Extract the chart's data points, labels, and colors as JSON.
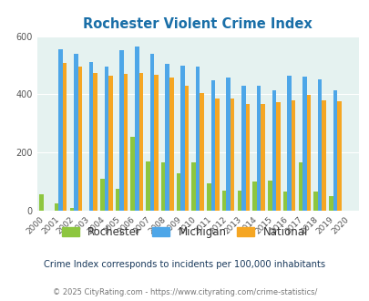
{
  "title": "Rochester Violent Crime Index",
  "years": [
    2000,
    2001,
    2002,
    2003,
    2004,
    2005,
    2006,
    2007,
    2008,
    2009,
    2010,
    2011,
    2012,
    2013,
    2014,
    2015,
    2016,
    2017,
    2018,
    2019,
    2020
  ],
  "rochester": [
    55,
    25,
    10,
    0,
    110,
    75,
    255,
    170,
    165,
    130,
    165,
    95,
    70,
    70,
    100,
    105,
    65,
    165,
    65,
    50,
    0
  ],
  "michigan": [
    0,
    555,
    540,
    510,
    495,
    552,
    565,
    538,
    505,
    500,
    495,
    448,
    458,
    430,
    430,
    415,
    465,
    460,
    452,
    415,
    0
  ],
  "national": [
    0,
    507,
    495,
    474,
    465,
    470,
    474,
    468,
    458,
    430,
    405,
    387,
    387,
    368,
    366,
    373,
    380,
    397,
    380,
    376,
    0
  ],
  "rochester_color": "#8dc63f",
  "michigan_color": "#4da6e8",
  "national_color": "#f5a623",
  "bg_color": "#e5f2f0",
  "title_color": "#1a6fa8",
  "ylabel_max": 600,
  "yticks": [
    0,
    200,
    400,
    600
  ],
  "subtitle": "Crime Index corresponds to incidents per 100,000 inhabitants",
  "footer": "© 2025 CityRating.com - https://www.cityrating.com/crime-statistics/",
  "subtitle_color": "#1a3a5c",
  "footer_color": "#777777",
  "legend_label_color": "#333333",
  "michigan_legend_color": "#1a6fa8"
}
